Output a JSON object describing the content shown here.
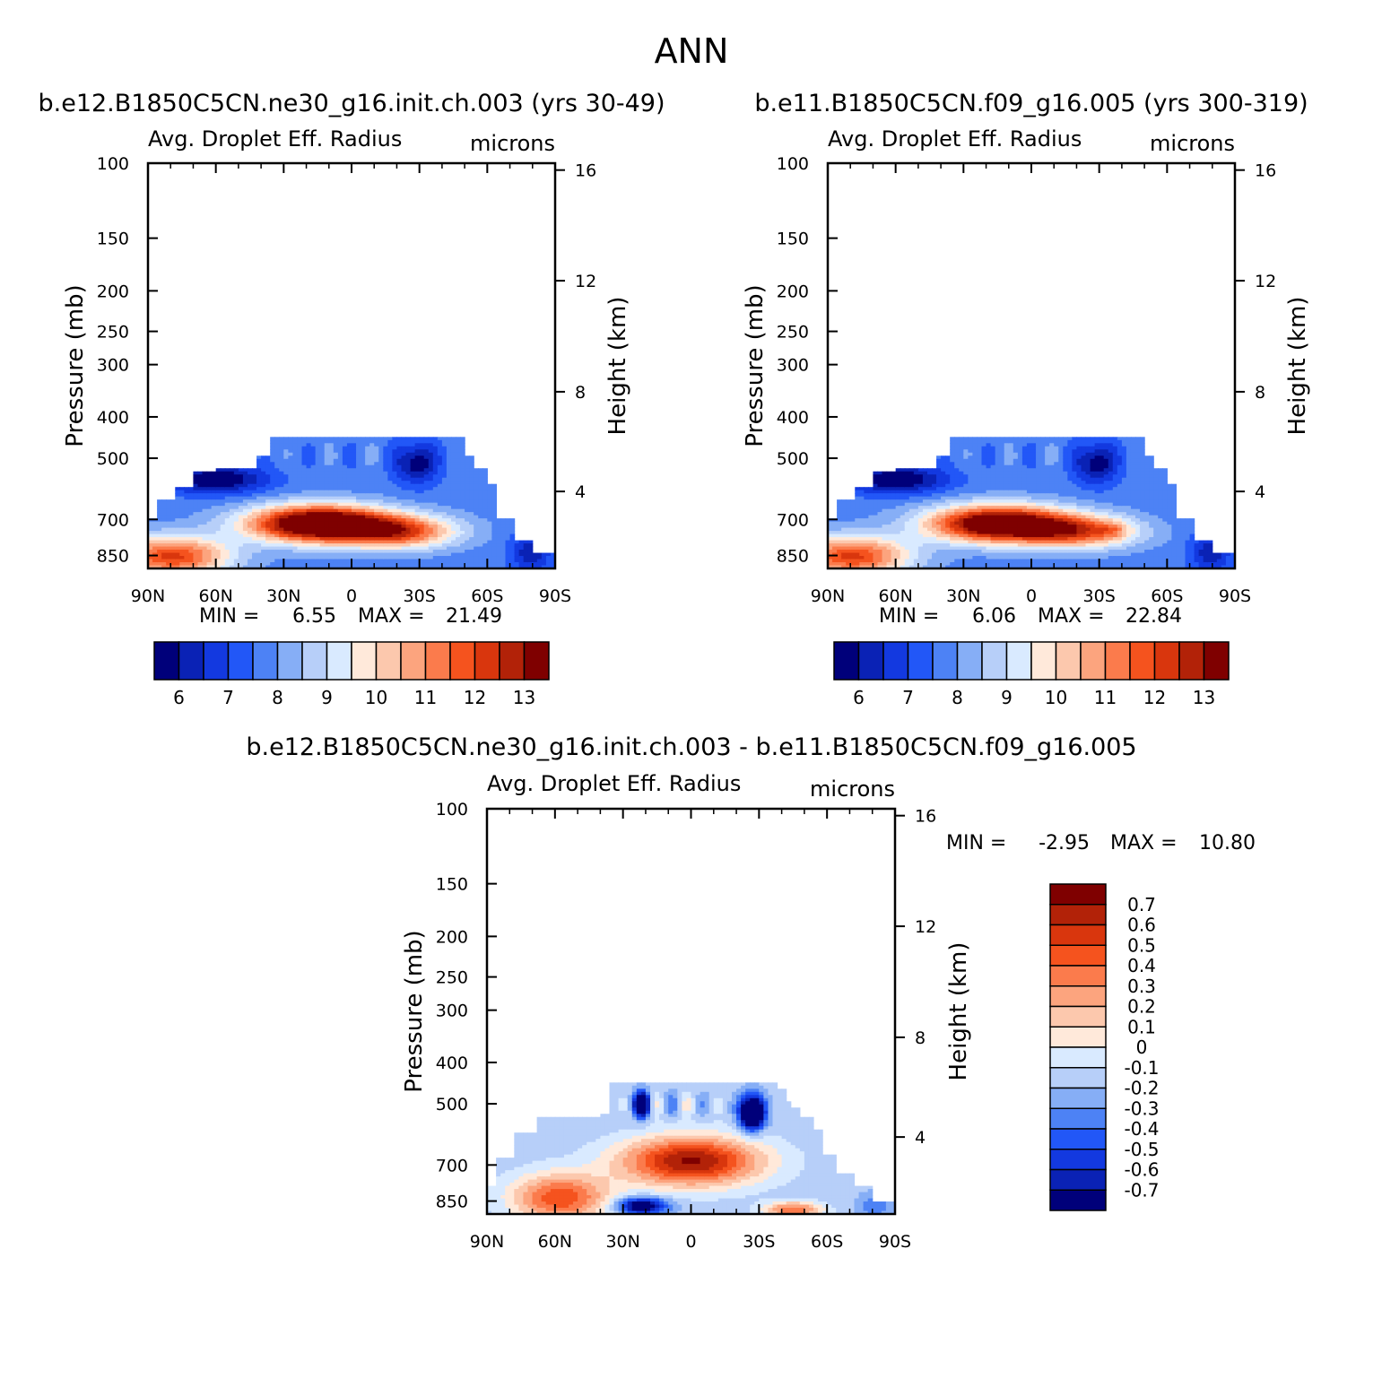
{
  "figure_title": "ANN",
  "colors": {
    "abs_scale": [
      "#00007a",
      "#0a22b5",
      "#1339e0",
      "#2257f7",
      "#4d82f5",
      "#86aef6",
      "#b7cff9",
      "#d9eaff",
      "#ffe9da",
      "#fcc8ad",
      "#fca47e",
      "#fb7b4c",
      "#f5531e",
      "#d9360d",
      "#b22208",
      "#7f0000"
    ],
    "diff_scale": [
      "#7f0000",
      "#b22208",
      "#d9360d",
      "#f5531e",
      "#fb7b4c",
      "#fca47e",
      "#fcc8ad",
      "#ffe9da",
      "#d9eaff",
      "#b7cff9",
      "#86aef6",
      "#4d82f5",
      "#2257f7",
      "#1339e0",
      "#0a22b5",
      "#00007a"
    ]
  },
  "chart_data": [
    {
      "type": "heatmap",
      "title": "b.e12.B1850C5CN.ne30_g16.init.ch.003 (yrs 30-49)",
      "variable": "Avg. Droplet Eff. Radius",
      "units": "microns",
      "ylabel": "Pressure (mb)",
      "ylabel2": "Height (km)",
      "xticks": [
        "90N",
        "60N",
        "30N",
        "0",
        "30S",
        "60S",
        "90S"
      ],
      "yticks": [
        "100",
        "150",
        "200",
        "250",
        "300",
        "400",
        "500",
        "700",
        "850"
      ],
      "yticks_right": [
        "16",
        "12",
        "8",
        "4"
      ],
      "min_label": "MIN =",
      "min": "6.55",
      "max_label": "MAX =",
      "max": "21.49",
      "colorbar_labels": [
        "6",
        "7",
        "8",
        "9",
        "10",
        "11",
        "12",
        "13"
      ],
      "field": {
        "top_core": 0.93,
        "lower_core": 0.88,
        "south_blob": 0.0
      }
    },
    {
      "type": "heatmap",
      "title": "b.e11.B1850C5CN.f09_g16.005 (yrs 300-319)",
      "variable": "Avg. Droplet Eff. Radius",
      "units": "microns",
      "ylabel": "Pressure (mb)",
      "ylabel2": "Height (km)",
      "xticks": [
        "90N",
        "60N",
        "30N",
        "0",
        "30S",
        "60S",
        "90S"
      ],
      "yticks": [
        "100",
        "150",
        "200",
        "250",
        "300",
        "400",
        "500",
        "700",
        "850"
      ],
      "yticks_right": [
        "16",
        "12",
        "8",
        "4"
      ],
      "min_label": "MIN =",
      "min": "6.06",
      "max_label": "MAX =",
      "max": "22.84",
      "colorbar_labels": [
        "6",
        "7",
        "8",
        "9",
        "10",
        "11",
        "12",
        "13"
      ],
      "field": {
        "top_core": 0.86,
        "lower_core": 0.84,
        "south_blob": 0.12
      }
    },
    {
      "type": "heatmap",
      "title": "b.e12.B1850C5CN.ne30_g16.init.ch.003 - b.e11.B1850C5CN.f09_g16.005",
      "variable": "Avg. Droplet Eff. Radius",
      "units": "microns",
      "ylabel": "Pressure (mb)",
      "ylabel2": "Height (km)",
      "xticks": [
        "90N",
        "60N",
        "30N",
        "0",
        "30S",
        "60S",
        "90S"
      ],
      "yticks": [
        "100",
        "150",
        "200",
        "250",
        "300",
        "400",
        "500",
        "700",
        "850"
      ],
      "yticks_right": [
        "16",
        "12",
        "8",
        "4"
      ],
      "min_label": "MIN =",
      "min": "-2.95",
      "max_label": "MAX =",
      "max": "10.80",
      "colorbar_labels": [
        "0.7",
        "0.6",
        "0.5",
        "0.4",
        "0.3",
        "0.2",
        "0.1",
        "0",
        "-0.1",
        "-0.2",
        "-0.3",
        "-0.4",
        "-0.5",
        "-0.6",
        "-0.7"
      ]
    }
  ]
}
